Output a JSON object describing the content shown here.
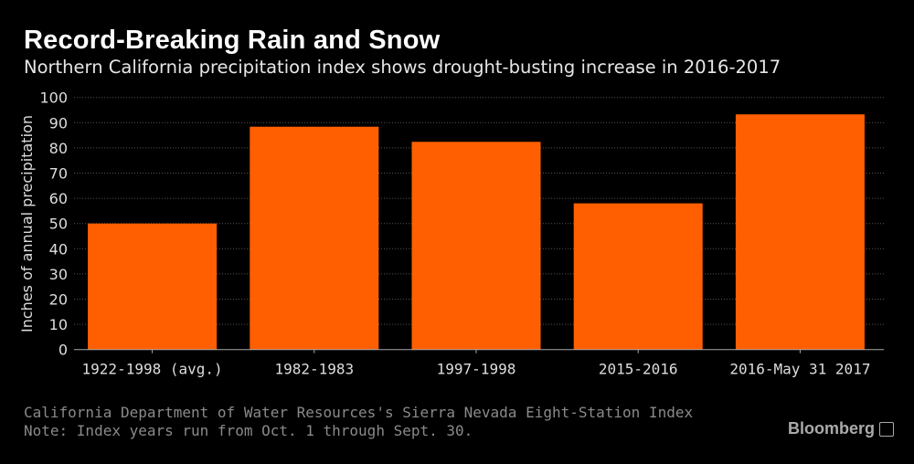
{
  "title": "Record-Breaking Rain and Snow",
  "subtitle": "Northern California precipitation index shows drought-busting increase in 2016-2017",
  "footer": {
    "source": "California Department of Water Resources's Sierra Nevada Eight-Station Index",
    "note": "Note: Index years run from Oct. 1 through Sept. 30.",
    "logo": "Bloomberg"
  },
  "colors": {
    "bar": "#ff5f00",
    "background": "#000000",
    "grid": "#555555"
  },
  "chart_data": {
    "type": "bar",
    "categories": [
      "1922-1998 (avg.)",
      "1982-1983",
      "1997-1998",
      "2015-2016",
      "2016-May 31 2017"
    ],
    "values": [
      50,
      88.4,
      82.4,
      58.0,
      93.3
    ],
    "title": "Record-Breaking Rain and Snow",
    "xlabel": "",
    "ylabel": "Inches of annual precipitation",
    "ylim": [
      0,
      100
    ],
    "yticks": [
      0,
      10,
      20,
      30,
      40,
      50,
      60,
      70,
      80,
      90,
      100
    ],
    "grid": true
  }
}
